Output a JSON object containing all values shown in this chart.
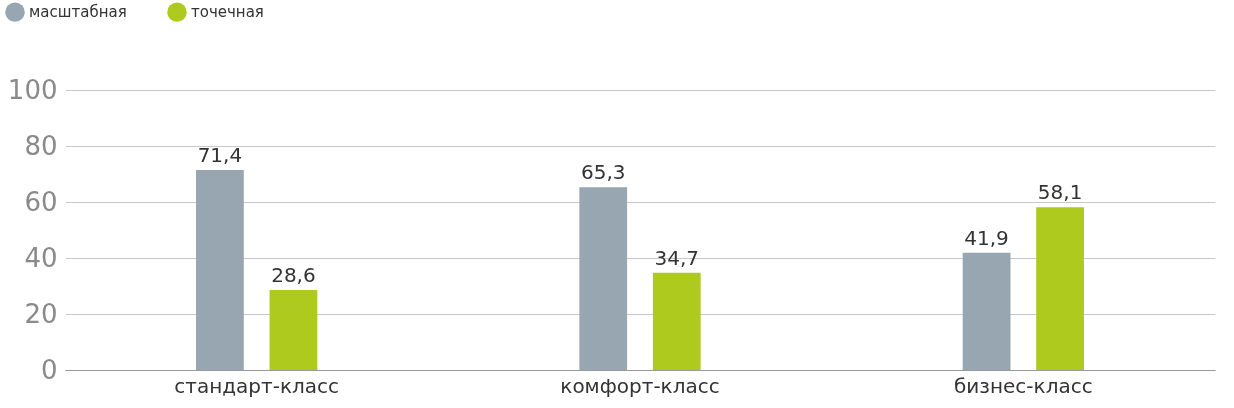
{
  "chart_data": {
    "type": "bar",
    "categories": [
      "стандарт-класс",
      "комфорт-класс",
      "бизнес-класс"
    ],
    "series": [
      {
        "name": "масштабная",
        "color": "#97a6b0",
        "values": [
          71.4,
          65.3,
          41.9
        ],
        "value_labels": [
          "71,4",
          "65,3",
          "41,9"
        ]
      },
      {
        "name": "точечная",
        "color": "#afca1e",
        "values": [
          28.6,
          34.7,
          58.1
        ],
        "value_labels": [
          "28,6",
          "34,7",
          "58,1"
        ]
      }
    ],
    "ylim": [
      0,
      100
    ],
    "yticks": [
      0,
      20,
      40,
      60,
      80,
      100
    ],
    "grid": "y",
    "legend": "top left"
  }
}
